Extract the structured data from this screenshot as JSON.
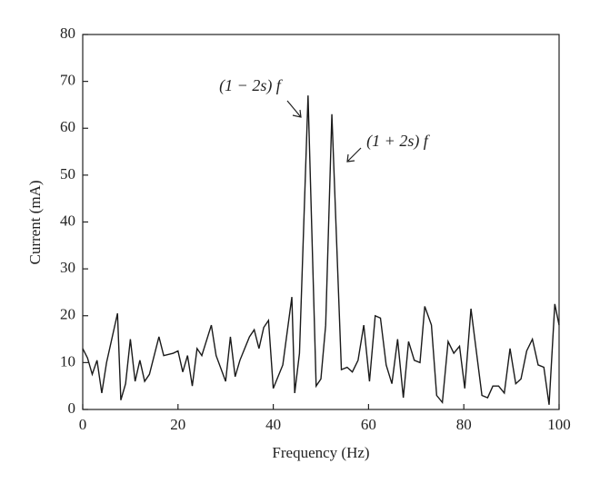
{
  "chart_data": {
    "type": "line",
    "xlabel": "Frequency (Hz)",
    "ylabel": "Current (mA)",
    "x": [
      0,
      1,
      2,
      3,
      4,
      5,
      7.3,
      8,
      9,
      10,
      11,
      12,
      13,
      14,
      16,
      17,
      19,
      20,
      21,
      22,
      23,
      24,
      25,
      27,
      28,
      30,
      31,
      32,
      33,
      35,
      36,
      37,
      38,
      39,
      40,
      42,
      43.9,
      44.5,
      45.5,
      47.3,
      49,
      50,
      51,
      52.3,
      54.3,
      55.5,
      56.6,
      57.8,
      59,
      60.2,
      61.4,
      62.5,
      63.7,
      64.9,
      66.1,
      67.3,
      68.4,
      69.6,
      70.8,
      71.8,
      73.2,
      74.3,
      75.5,
      76.7,
      77.9,
      79.1,
      80.2,
      81.5,
      83.8,
      85,
      86.1,
      87.3,
      88.5,
      89.7,
      90.9,
      92,
      93.2,
      94.4,
      95.6,
      96.8,
      97.9,
      99.1,
      100
    ],
    "series": [
      {
        "color": "#1a1a1a",
        "values": [
          13,
          11,
          7.5,
          10.5,
          3.5,
          10,
          20.5,
          2,
          5.5,
          15,
          6,
          10.5,
          6,
          7.5,
          15.5,
          11.5,
          12,
          12.5,
          8,
          11.5,
          5,
          13,
          11.5,
          18,
          11.5,
          6,
          15.5,
          7,
          10.5,
          15.5,
          17,
          13,
          17.5,
          19,
          4.5,
          9.5,
          24,
          3.5,
          12,
          67,
          5,
          6.5,
          18,
          63,
          8.5,
          9,
          8,
          10.5,
          18,
          6,
          20,
          19.5,
          9.5,
          5.5,
          15,
          2.5,
          14.5,
          10.5,
          10,
          22,
          18,
          3,
          1.5,
          14.5,
          12,
          13.5,
          4.5,
          21.5,
          3,
          2.5,
          5,
          5,
          3.5,
          13,
          5.5,
          6.5,
          12.5,
          15,
          9.5,
          9,
          1,
          22.5,
          18
        ]
      }
    ],
    "xlim": [
      0,
      100
    ],
    "xticks": [
      0,
      20,
      40,
      60,
      80,
      100
    ],
    "ylim": [
      0,
      80
    ],
    "yticks": [
      0,
      10,
      20,
      30,
      40,
      50,
      60,
      70,
      80
    ],
    "annotations": [
      "(1 − 2s) f",
      "(1 + 2s) f"
    ]
  }
}
